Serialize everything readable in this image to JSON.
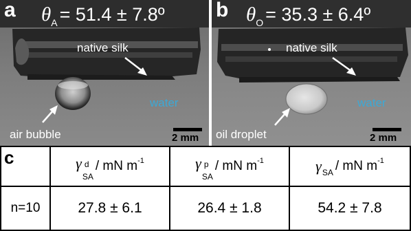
{
  "panel_a": {
    "letter": "a",
    "angle_symbol": "θ",
    "angle_subscript": "A",
    "angle_value": "= 51.4 ± 7.8º",
    "label_silk": "native silk",
    "label_water": "water",
    "label_object": "air bubble",
    "scale": "2 mm"
  },
  "panel_b": {
    "letter": "b",
    "angle_symbol": "θ",
    "angle_subscript": "O",
    "angle_value": "= 35.3 ± 6.4º",
    "label_silk": "native silk",
    "label_water": "water",
    "label_object": "oil droplet",
    "scale": "2 mm"
  },
  "table": {
    "letter": "c",
    "headers": [
      {
        "symbol": "γ",
        "sup": "d",
        "sub": "SA",
        "unit": "/ mN m",
        "exp": "-1"
      },
      {
        "symbol": "γ",
        "sup": "p",
        "sub": "SA",
        "unit": "/ mN m",
        "exp": "-1"
      },
      {
        "symbol": "γ",
        "sup": "",
        "sub": "SA",
        "unit": "/ mN m",
        "exp": "-1"
      }
    ],
    "row_label": "n=10",
    "values": [
      "27.8 ± 6.1",
      "26.4 ± 1.8",
      "54.2 ± 7.8"
    ]
  }
}
